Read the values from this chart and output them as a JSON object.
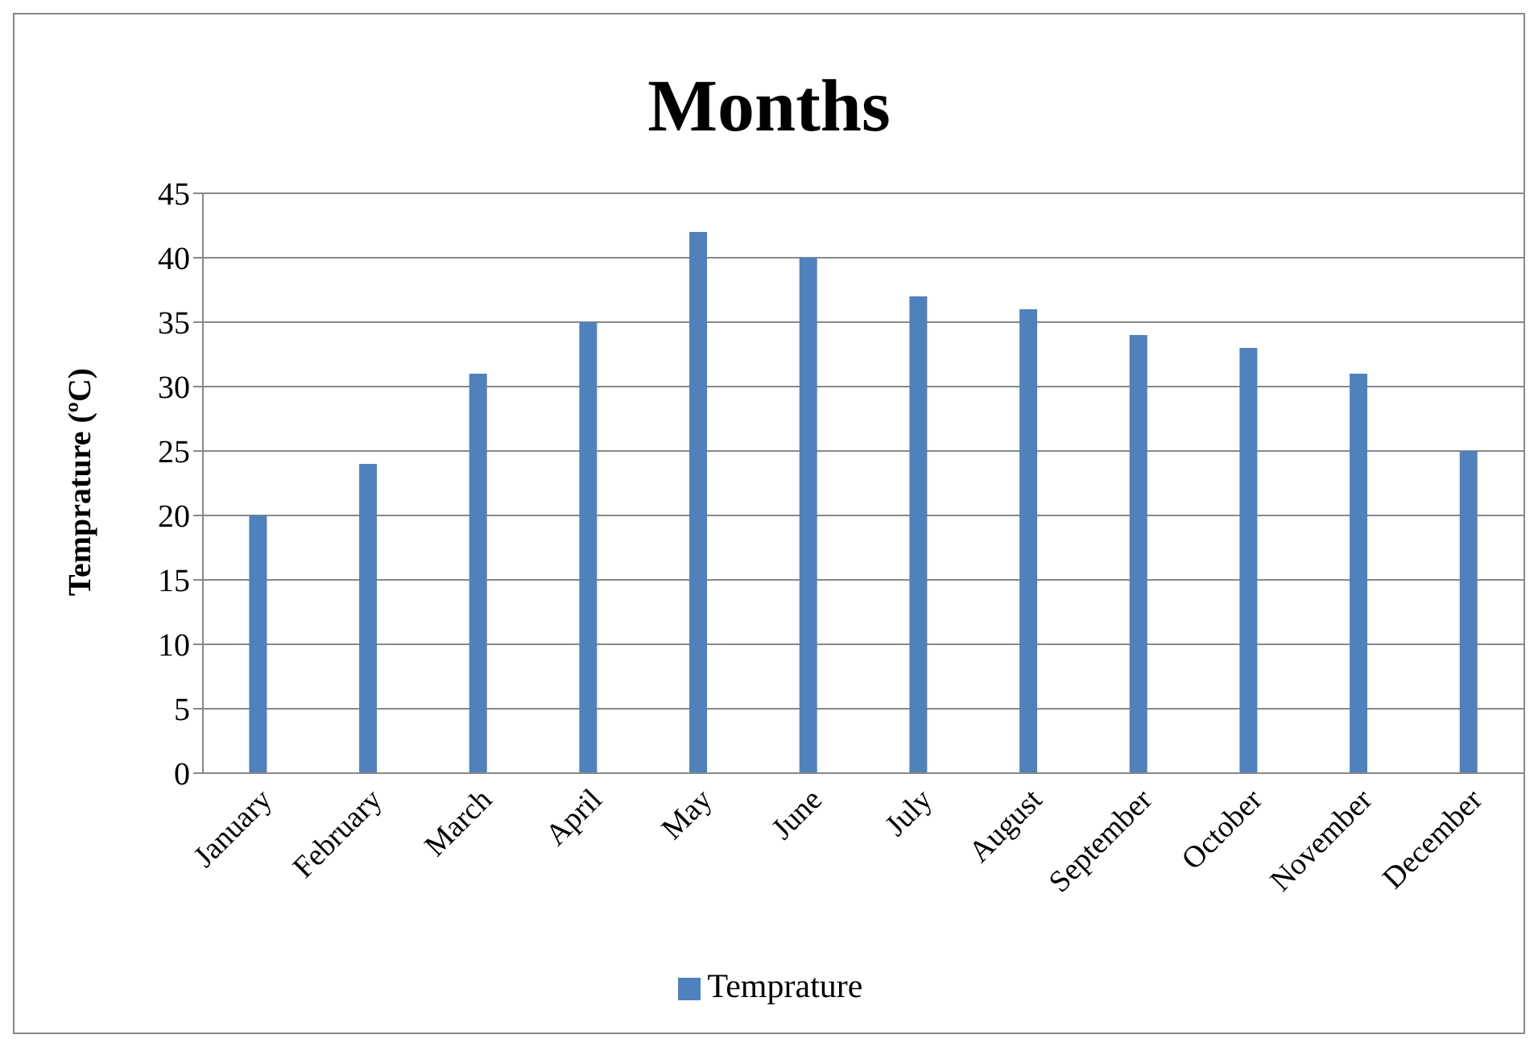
{
  "chart_data": {
    "type": "bar",
    "title": "Months",
    "ylabel": "Temprature (ºC)",
    "categories": [
      "January",
      "February",
      "March",
      "April",
      "May",
      "June",
      "July",
      "August",
      "September",
      "October",
      "November",
      "December"
    ],
    "series": [
      {
        "name": "Temprature",
        "color": "#4f81bd",
        "values": [
          20,
          24,
          31,
          35,
          42,
          40,
          37,
          36,
          34,
          33,
          31,
          25
        ]
      }
    ],
    "ylim": [
      0,
      45
    ],
    "yticks": [
      0,
      5,
      10,
      15,
      20,
      25,
      30,
      35,
      40,
      45
    ],
    "grid": "y",
    "legend": "bottom"
  }
}
